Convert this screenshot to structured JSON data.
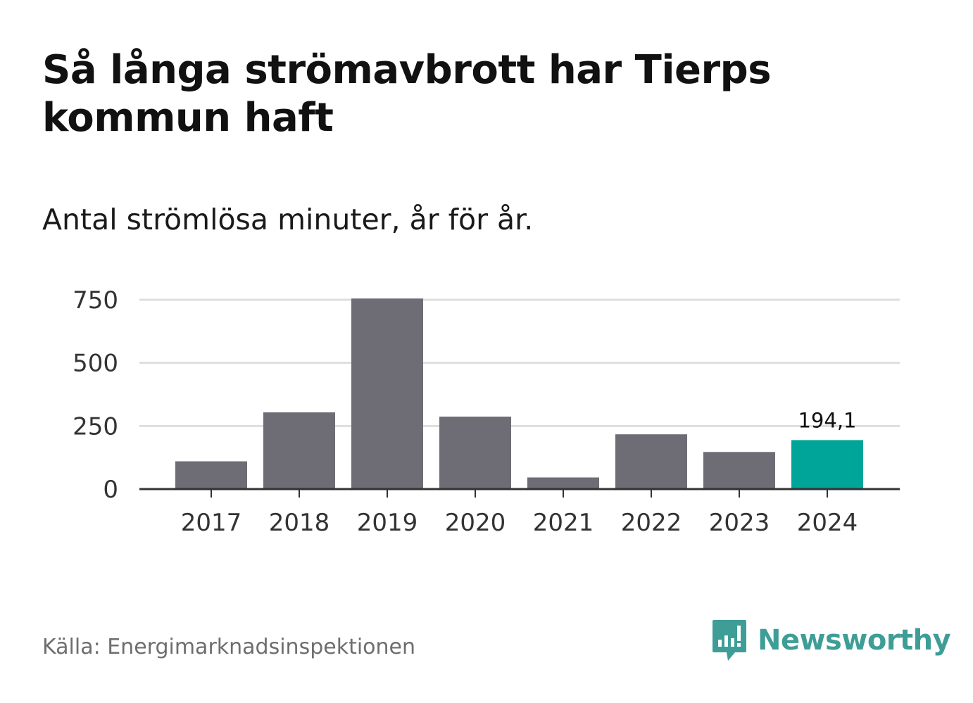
{
  "header": {
    "title": "Så långa strömavbrott har Tierps kommun haft",
    "subtitle": "Antal strömlösa minuter, år för år."
  },
  "footer": {
    "source": "Källa: Energimarknadsinspektionen",
    "brand": "Newsworthy"
  },
  "colors": {
    "bar": "#6e6d75",
    "highlight": "#00a59a",
    "grid": "#dedede",
    "axis": "#333333",
    "brand": "#3e9e97"
  },
  "chart_data": {
    "type": "bar",
    "title": "Så långa strömavbrott har Tierps kommun haft",
    "subtitle": "Antal strömlösa minuter, år för år.",
    "categories": [
      "2017",
      "2018",
      "2019",
      "2020",
      "2021",
      "2022",
      "2023",
      "2024"
    ],
    "values": [
      110,
      304,
      755,
      287,
      46,
      217,
      147,
      194.1
    ],
    "highlight_index": 7,
    "data_labels": [
      {
        "index": 7,
        "text": "194,1"
      }
    ],
    "yticks": [
      0,
      250,
      500,
      750
    ],
    "ylim": [
      0,
      750
    ],
    "xlabel": "",
    "ylabel": "",
    "grid": true
  }
}
